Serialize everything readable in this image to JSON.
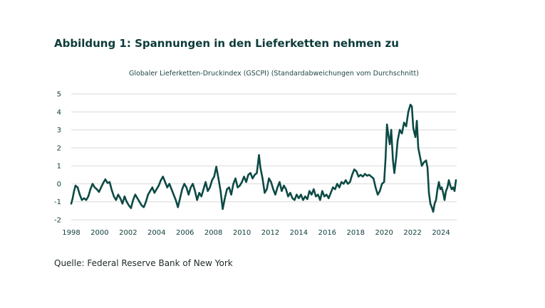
{
  "figure_title": "Abbildung 1: Spannungen in den Lieferketten nehmen zu",
  "source_note": "Quelle: Federal Reserve Bank of New York",
  "colors": {
    "line": "#0d4a44",
    "grid": "#d9d9d9",
    "text": "#0d3b3a"
  },
  "chart_data": {
    "type": "line",
    "title": "Globaler Lieferketten-Druckindex (GSCPI) (Standardabweichungen vom Durchschnitt)",
    "xlabel": "",
    "ylabel": "",
    "xlim": [
      1998,
      2025.1
    ],
    "ylim": [
      -2,
      5
    ],
    "yticks": [
      5,
      4,
      3,
      2,
      1,
      0,
      -1,
      -2
    ],
    "xticks": [
      "1998",
      "2000",
      "2002",
      "2004",
      "2006",
      "2008",
      "2010",
      "2012",
      "2014",
      "2016",
      "2018",
      "2020",
      "2022",
      "2024"
    ],
    "grid": true,
    "series": [
      {
        "values": [
          [
            1998.0,
            -1.1
          ],
          [
            1998.1,
            -0.8
          ],
          [
            1998.2,
            -0.4
          ],
          [
            1998.3,
            -0.1
          ],
          [
            1998.45,
            -0.2
          ],
          [
            1998.6,
            -0.6
          ],
          [
            1998.75,
            -0.9
          ],
          [
            1998.9,
            -0.8
          ],
          [
            1999.05,
            -0.9
          ],
          [
            1999.2,
            -0.7
          ],
          [
            1999.35,
            -0.3
          ],
          [
            1999.5,
            0.0
          ],
          [
            1999.65,
            -0.2
          ],
          [
            1999.8,
            -0.3
          ],
          [
            1999.95,
            -0.45
          ],
          [
            2000.1,
            -0.2
          ],
          [
            2000.25,
            0.05
          ],
          [
            2000.4,
            0.25
          ],
          [
            2000.55,
            0.05
          ],
          [
            2000.7,
            0.1
          ],
          [
            2000.85,
            -0.35
          ],
          [
            2001.0,
            -0.7
          ],
          [
            2001.15,
            -0.9
          ],
          [
            2001.3,
            -0.6
          ],
          [
            2001.45,
            -0.8
          ],
          [
            2001.6,
            -1.1
          ],
          [
            2001.75,
            -0.7
          ],
          [
            2001.9,
            -1.0
          ],
          [
            2002.05,
            -1.2
          ],
          [
            2002.2,
            -1.35
          ],
          [
            2002.35,
            -0.9
          ],
          [
            2002.5,
            -0.6
          ],
          [
            2002.65,
            -0.8
          ],
          [
            2002.8,
            -1.0
          ],
          [
            2002.95,
            -1.2
          ],
          [
            2003.1,
            -1.3
          ],
          [
            2003.25,
            -1.0
          ],
          [
            2003.4,
            -0.6
          ],
          [
            2003.55,
            -0.4
          ],
          [
            2003.7,
            -0.2
          ],
          [
            2003.85,
            -0.5
          ],
          [
            2004.0,
            -0.3
          ],
          [
            2004.15,
            -0.1
          ],
          [
            2004.3,
            0.2
          ],
          [
            2004.45,
            0.4
          ],
          [
            2004.6,
            0.1
          ],
          [
            2004.75,
            -0.2
          ],
          [
            2004.9,
            0.0
          ],
          [
            2005.05,
            -0.3
          ],
          [
            2005.2,
            -0.6
          ],
          [
            2005.35,
            -0.9
          ],
          [
            2005.5,
            -1.3
          ],
          [
            2005.65,
            -0.8
          ],
          [
            2005.8,
            -0.3
          ],
          [
            2005.95,
            0.0
          ],
          [
            2006.1,
            -0.2
          ],
          [
            2006.25,
            -0.6
          ],
          [
            2006.4,
            -0.2
          ],
          [
            2006.55,
            0.0
          ],
          [
            2006.7,
            -0.4
          ],
          [
            2006.85,
            -0.9
          ],
          [
            2007.0,
            -0.5
          ],
          [
            2007.15,
            -0.7
          ],
          [
            2007.3,
            -0.3
          ],
          [
            2007.45,
            0.1
          ],
          [
            2007.6,
            -0.4
          ],
          [
            2007.75,
            -0.2
          ],
          [
            2007.9,
            0.2
          ],
          [
            2008.05,
            0.4
          ],
          [
            2008.2,
            0.95
          ],
          [
            2008.35,
            0.3
          ],
          [
            2008.5,
            -0.4
          ],
          [
            2008.65,
            -1.4
          ],
          [
            2008.8,
            -0.8
          ],
          [
            2008.95,
            -0.3
          ],
          [
            2009.1,
            -0.2
          ],
          [
            2009.25,
            -0.6
          ],
          [
            2009.4,
            0.0
          ],
          [
            2009.55,
            0.3
          ],
          [
            2009.7,
            -0.2
          ],
          [
            2009.85,
            -0.1
          ],
          [
            2010.0,
            0.1
          ],
          [
            2010.15,
            0.4
          ],
          [
            2010.3,
            0.1
          ],
          [
            2010.45,
            0.5
          ],
          [
            2010.6,
            0.6
          ],
          [
            2010.75,
            0.3
          ],
          [
            2010.9,
            0.5
          ],
          [
            2011.05,
            0.6
          ],
          [
            2011.2,
            1.6
          ],
          [
            2011.3,
            0.9
          ],
          [
            2011.45,
            0.3
          ],
          [
            2011.6,
            -0.5
          ],
          [
            2011.75,
            -0.3
          ],
          [
            2011.9,
            0.3
          ],
          [
            2012.05,
            0.1
          ],
          [
            2012.2,
            -0.3
          ],
          [
            2012.35,
            -0.6
          ],
          [
            2012.5,
            -0.2
          ],
          [
            2012.65,
            0.1
          ],
          [
            2012.8,
            -0.4
          ],
          [
            2012.95,
            -0.1
          ],
          [
            2013.1,
            -0.3
          ],
          [
            2013.25,
            -0.7
          ],
          [
            2013.4,
            -0.5
          ],
          [
            2013.55,
            -0.8
          ],
          [
            2013.7,
            -0.9
          ],
          [
            2013.85,
            -0.6
          ],
          [
            2014.0,
            -0.8
          ],
          [
            2014.15,
            -0.6
          ],
          [
            2014.3,
            -0.9
          ],
          [
            2014.45,
            -0.7
          ],
          [
            2014.6,
            -0.85
          ],
          [
            2014.75,
            -0.4
          ],
          [
            2014.9,
            -0.6
          ],
          [
            2015.05,
            -0.3
          ],
          [
            2015.2,
            -0.7
          ],
          [
            2015.35,
            -0.6
          ],
          [
            2015.5,
            -0.9
          ],
          [
            2015.65,
            -0.4
          ],
          [
            2015.8,
            -0.7
          ],
          [
            2015.95,
            -0.6
          ],
          [
            2016.1,
            -0.8
          ],
          [
            2016.25,
            -0.5
          ],
          [
            2016.4,
            -0.2
          ],
          [
            2016.55,
            -0.3
          ],
          [
            2016.7,
            0.0
          ],
          [
            2016.85,
            -0.2
          ],
          [
            2017.0,
            0.1
          ],
          [
            2017.15,
            0.0
          ],
          [
            2017.3,
            0.2
          ],
          [
            2017.45,
            0.0
          ],
          [
            2017.6,
            0.1
          ],
          [
            2017.75,
            0.5
          ],
          [
            2017.9,
            0.8
          ],
          [
            2018.05,
            0.7
          ],
          [
            2018.2,
            0.4
          ],
          [
            2018.35,
            0.5
          ],
          [
            2018.5,
            0.4
          ],
          [
            2018.65,
            0.55
          ],
          [
            2018.8,
            0.45
          ],
          [
            2018.95,
            0.5
          ],
          [
            2019.1,
            0.4
          ],
          [
            2019.25,
            0.3
          ],
          [
            2019.4,
            -0.2
          ],
          [
            2019.55,
            -0.6
          ],
          [
            2019.7,
            -0.4
          ],
          [
            2019.85,
            0.0
          ],
          [
            2020.0,
            0.1
          ],
          [
            2020.1,
            1.4
          ],
          [
            2020.2,
            3.3
          ],
          [
            2020.3,
            2.7
          ],
          [
            2020.4,
            2.2
          ],
          [
            2020.5,
            3.0
          ],
          [
            2020.62,
            1.3
          ],
          [
            2020.72,
            0.6
          ],
          [
            2020.85,
            1.5
          ],
          [
            2020.95,
            2.4
          ],
          [
            2021.1,
            3.0
          ],
          [
            2021.25,
            2.8
          ],
          [
            2021.4,
            3.4
          ],
          [
            2021.55,
            3.2
          ],
          [
            2021.7,
            4.0
          ],
          [
            2021.85,
            4.4
          ],
          [
            2021.95,
            4.3
          ],
          [
            2022.05,
            3.1
          ],
          [
            2022.2,
            2.6
          ],
          [
            2022.3,
            3.5
          ],
          [
            2022.4,
            2.0
          ],
          [
            2022.55,
            1.4
          ],
          [
            2022.65,
            1.0
          ],
          [
            2022.8,
            1.2
          ],
          [
            2022.95,
            1.3
          ],
          [
            2023.05,
            0.9
          ],
          [
            2023.15,
            -0.5
          ],
          [
            2023.25,
            -1.1
          ],
          [
            2023.35,
            -1.3
          ],
          [
            2023.45,
            -1.55
          ],
          [
            2023.55,
            -1.1
          ],
          [
            2023.65,
            -0.9
          ],
          [
            2023.75,
            -0.3
          ],
          [
            2023.85,
            0.1
          ],
          [
            2023.95,
            -0.3
          ],
          [
            2024.05,
            -0.2
          ],
          [
            2024.15,
            -0.5
          ],
          [
            2024.25,
            -0.9
          ],
          [
            2024.35,
            -0.4
          ],
          [
            2024.45,
            -0.2
          ],
          [
            2024.55,
            0.2
          ],
          [
            2024.65,
            -0.1
          ],
          [
            2024.75,
            -0.3
          ],
          [
            2024.85,
            -0.2
          ],
          [
            2024.95,
            -0.4
          ],
          [
            2025.05,
            0.2
          ]
        ]
      }
    ]
  }
}
